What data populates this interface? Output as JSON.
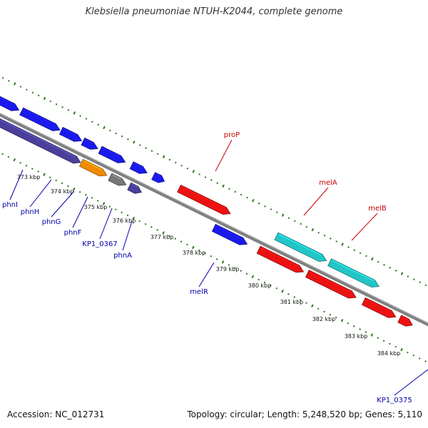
{
  "title": "Klebsiella pneumoniae NTUH-K2044, complete genome",
  "footer": {
    "accession": "Accession: NC_012731",
    "summary": "Topology: circular; Length: 5,248,520 bp; Genes: 5,110"
  },
  "colors": {
    "blue_gene": "#1a1aee",
    "indigo_gene": "#4a3f9a",
    "orange_gene": "#f08a00",
    "gray_gene": "#777777",
    "red_gene": "#ee1111",
    "cyan_gene": "#22c6c6",
    "backbone": "#808080",
    "ticks": "#2b7a1a",
    "blue_label": "#0000aa",
    "red_label": "#cc0000"
  },
  "tick_labels": [
    "373 kbp",
    "374 kbp",
    "375 kbp",
    "376 kbp",
    "377 kbp",
    "378 kbp",
    "379 kbp",
    "380 kbp",
    "381 kbp",
    "382 kbp",
    "383 kbp",
    "384 kbp"
  ],
  "genes": [
    {
      "label": "phnI",
      "color": "blue"
    },
    {
      "label": "phnH",
      "color": "blue"
    },
    {
      "label": "phnG",
      "color": "blue"
    },
    {
      "label": "phnF",
      "color": "blue"
    },
    {
      "label": "KP1_0367",
      "color": "blue"
    },
    {
      "label": "phnA",
      "color": "blue"
    },
    {
      "label": "proP",
      "color": "red"
    },
    {
      "label": "melA",
      "color": "red"
    },
    {
      "label": "melB",
      "color": "red"
    },
    {
      "label": "melR",
      "color": "blue"
    },
    {
      "label": "KP1_0375",
      "color": "blue"
    }
  ]
}
